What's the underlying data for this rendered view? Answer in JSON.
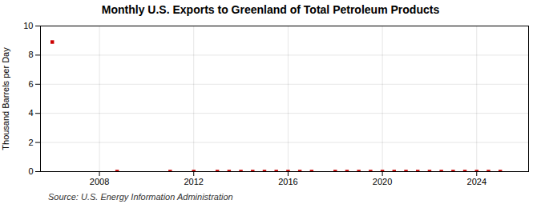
{
  "chart_data": {
    "type": "scatter",
    "title": "Monthly U.S. Exports to Greenland of Total Petroleum Products",
    "ylabel": "Thousand Barrels per Day",
    "annotations": [
      "Source: U.S. Energy Information Administration"
    ],
    "x": [
      2006.0,
      2008.75,
      2011.0,
      2012.0,
      2013.0,
      2013.5,
      2014.0,
      2014.5,
      2015.0,
      2015.5,
      2016.0,
      2016.5,
      2017.0,
      2018.0,
      2018.5,
      2019.0,
      2019.5,
      2020.0,
      2020.5,
      2021.0,
      2021.5,
      2022.0,
      2022.5,
      2023.0,
      2023.5,
      2024.0,
      2024.5,
      2025.0
    ],
    "values": [
      8.9,
      0.0,
      0.0,
      0.0,
      0.0,
      0.0,
      0.0,
      0.0,
      0.0,
      0.0,
      0.0,
      0.0,
      0.0,
      0.0,
      0.0,
      0.0,
      0.0,
      0.0,
      0.0,
      0.0,
      0.0,
      0.0,
      0.0,
      0.0,
      0.0,
      0.0,
      0.0,
      0.0
    ],
    "xlim": [
      2005.5,
      2026.2
    ],
    "xticks": [
      2008,
      2012,
      2016,
      2020,
      2024
    ],
    "ylim": [
      0,
      10
    ],
    "yticks": [
      0,
      2,
      4,
      6,
      8,
      10
    ],
    "grid": true,
    "color": "#cc0000",
    "marker": "square"
  }
}
